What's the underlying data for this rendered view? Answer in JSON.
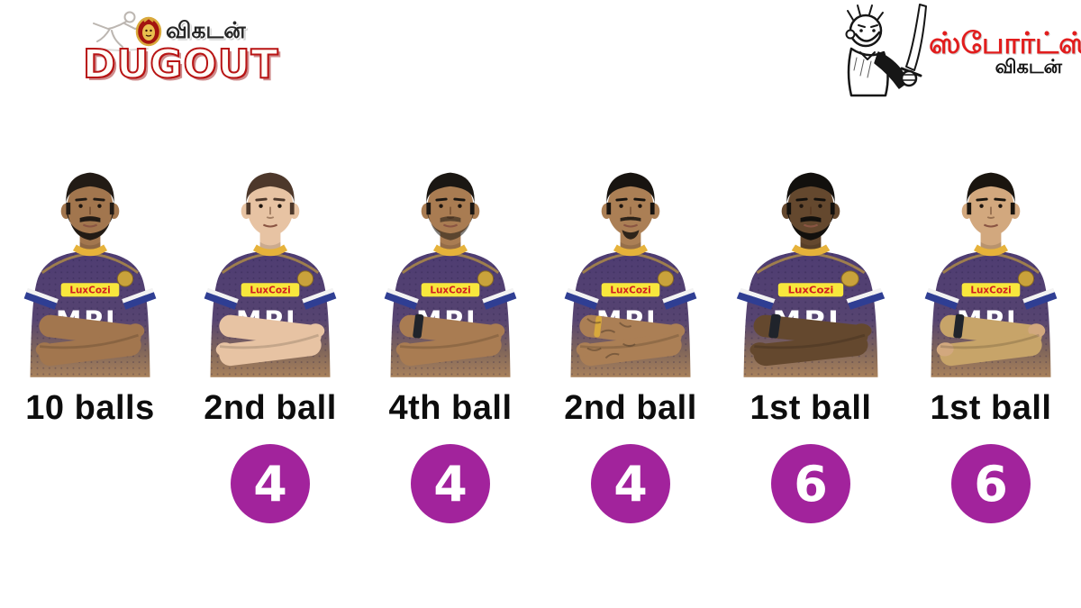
{
  "colors": {
    "background": "#ffffff",
    "circle_bg": "#a2239c",
    "circle_text": "#ffffff",
    "label_text": "#0d0d0d",
    "dugout_red": "#b81414",
    "tamil_dark": "#262626",
    "sports_red": "#e21d1d"
  },
  "header": {
    "dugout": {
      "tamil": "விகடன்",
      "wordmark": "DUGOUT"
    },
    "sports": {
      "title": "ஸ்போர்ட்ஸ்",
      "subtitle": "விகடன்"
    }
  },
  "jersey": {
    "main": "#4e3c72",
    "main2": "#564471",
    "fade_mid": "#82675a",
    "fade": "#a9825c",
    "collar": "#e6b23a",
    "cuff_white": "#f2f2f2",
    "cuff_blue": "#2f3e93",
    "crest": "#c9a23b",
    "sponsor_bg": "#f8e73c",
    "sponsor_text": "LuxCozi",
    "sponsor_text_color": "#d21f1f",
    "chest_text": "MPL"
  },
  "players": [
    {
      "label": "10 balls",
      "runs": "",
      "appearance": {
        "skin": "#a2764e",
        "hair": "#221b15",
        "beard": "full",
        "build": "slim",
        "sleeves": "short",
        "sleeve_color": "",
        "wrist": "none",
        "tattoos": false
      }
    },
    {
      "label": "2nd ball",
      "runs": "4",
      "appearance": {
        "skin": "#e7c3a3",
        "hair": "#4d382b",
        "beard": "none",
        "build": "slim",
        "sleeves": "short",
        "sleeve_color": "",
        "wrist": "none",
        "tattoos": false
      }
    },
    {
      "label": "4th ball",
      "runs": "4",
      "appearance": {
        "skin": "#a97c52",
        "hair": "#1b1713",
        "beard": "light",
        "build": "slim",
        "sleeves": "short",
        "sleeve_color": "",
        "wrist": "watch",
        "tattoos": false
      }
    },
    {
      "label": "2nd ball",
      "runs": "4",
      "appearance": {
        "skin": "#ab7f55",
        "hair": "#181410",
        "beard": "goatee",
        "build": "slim",
        "sleeves": "short",
        "sleeve_color": "",
        "wrist": "gold",
        "tattoos": true
      }
    },
    {
      "label": "1st ball",
      "runs": "6",
      "appearance": {
        "skin": "#64482e",
        "hair": "#12100d",
        "beard": "full",
        "build": "muscular",
        "sleeves": "short",
        "sleeve_color": "",
        "wrist": "watch",
        "tattoos": false
      }
    },
    {
      "label": "1st ball",
      "runs": "6",
      "appearance": {
        "skin": "#d2a87e",
        "hair": "#1a150f",
        "beard": "none",
        "build": "slim",
        "sleeves": "long",
        "sleeve_color": "#c7a469",
        "wrist": "watch",
        "tattoos": false
      }
    }
  ],
  "chart_data": {
    "type": "table",
    "title": "",
    "columns": [
      "first_boundary_ball_label",
      "runs_scored"
    ],
    "categories": [
      "10 balls",
      "2nd ball",
      "4th ball",
      "2nd ball",
      "1st ball",
      "1st ball"
    ],
    "values": [
      null,
      4,
      4,
      4,
      6,
      6
    ],
    "legend_position": "none",
    "grid": false
  }
}
